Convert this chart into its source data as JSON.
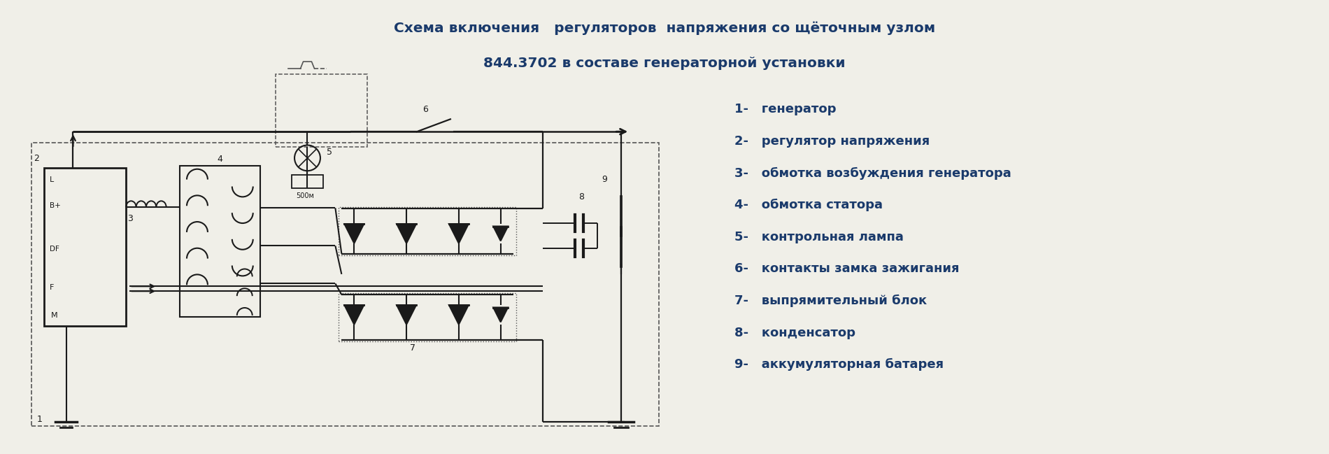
{
  "title_line1": "Схема включения   регуляторов  напряжения со щёточным узлом",
  "title_line2": "844.3702 в составе генераторной установки",
  "title_color": "#1a3a6b",
  "title_fontsize": 14.5,
  "bg_color": "#f0efe8",
  "line_color": "#1a1a1a",
  "dashed_color": "#555555",
  "legend_items": [
    "1-   генератор",
    "2-   регулятор напряжения",
    "3-   обмотка возбуждения генератора",
    "4-   обмотка статора",
    "5-   контрольная лампа",
    "6-   контакты замка зажигания",
    "7-   выпрямительный блок",
    "8-   конденсатор",
    "9-   аккумуляторная батарея"
  ],
  "legend_color": "#1a3a6b",
  "legend_fontsize": 13
}
